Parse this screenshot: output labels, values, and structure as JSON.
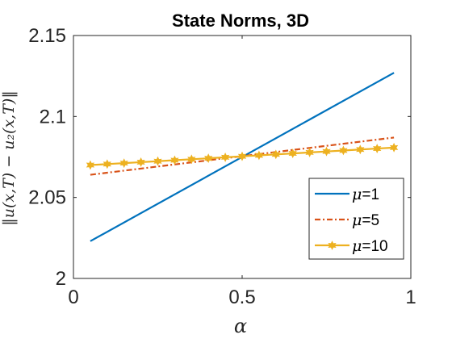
{
  "chart_data": {
    "type": "line",
    "title": "State Norms, 3D",
    "xlabel": "α",
    "ylabel": "‖u(x,T) − u₂(x,T)‖",
    "xlim": [
      0,
      1
    ],
    "ylim": [
      2,
      2.15
    ],
    "xticks": [
      0,
      0.5,
      1
    ],
    "xtick_labels": [
      "0",
      "0.5",
      "1"
    ],
    "yticks": [
      2,
      2.05,
      2.1,
      2.15
    ],
    "ytick_labels": [
      "2",
      "2.05",
      "2.1",
      "2.15"
    ],
    "grid": false,
    "legend_position": "bottom-right",
    "series": [
      {
        "name": "μ=1",
        "legend_label": "=1",
        "legend_symbol": "μ",
        "color": "#0072BD",
        "line_style": "solid",
        "marker": "none",
        "x": [
          0.05,
          0.95
        ],
        "y": [
          2.023,
          2.127
        ]
      },
      {
        "name": "μ=5",
        "legend_label": "=5",
        "legend_symbol": "μ",
        "color": "#D95319",
        "line_style": "dash-dot",
        "marker": "none",
        "x": [
          0.05,
          0.95
        ],
        "y": [
          2.064,
          2.087
        ]
      },
      {
        "name": "μ=10",
        "legend_label": "=10",
        "legend_symbol": "μ",
        "color": "#EDB120",
        "line_style": "solid",
        "marker": "hexagram",
        "x": [
          0.05,
          0.1,
          0.15,
          0.2,
          0.25,
          0.3,
          0.35,
          0.4,
          0.45,
          0.5,
          0.55,
          0.6,
          0.65,
          0.7,
          0.75,
          0.8,
          0.85,
          0.9,
          0.95
        ],
        "y": [
          2.07,
          2.0706,
          2.0712,
          2.0718,
          2.0724,
          2.073,
          2.0736,
          2.0742,
          2.0748,
          2.0754,
          2.076,
          2.0766,
          2.0772,
          2.0778,
          2.0784,
          2.079,
          2.0796,
          2.0802,
          2.0808
        ]
      }
    ]
  }
}
